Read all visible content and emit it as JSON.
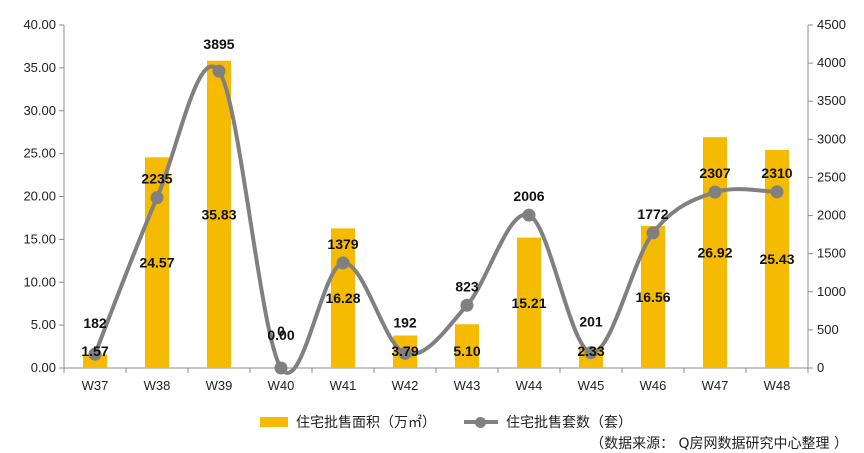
{
  "chart_data": {
    "type": "bar",
    "categories": [
      "W37",
      "W38",
      "W39",
      "W40",
      "W41",
      "W42",
      "W43",
      "W44",
      "W45",
      "W46",
      "W47",
      "W48"
    ],
    "series": [
      {
        "name": "住宅批售面积（万㎡）",
        "kind": "bar",
        "axis": "left",
        "color": "#F5BB00",
        "values": [
          1.57,
          24.57,
          35.83,
          0.0,
          16.28,
          3.79,
          5.1,
          15.21,
          2.33,
          16.56,
          26.92,
          25.43
        ],
        "labels": [
          "1.57",
          "24.57",
          "35.83",
          "0.00",
          "16.28",
          "3.79",
          "5.10",
          "15.21",
          "2.33",
          "16.56",
          "26.92",
          "25.43"
        ]
      },
      {
        "name": "住宅批售套数（套）",
        "kind": "line",
        "axis": "right",
        "color": "#808080",
        "values": [
          182,
          2235,
          3895,
          0,
          1379,
          192,
          823,
          2006,
          201,
          1772,
          2307,
          2310
        ],
        "labels": [
          "182",
          "2235",
          "3895",
          "0",
          "1379",
          "192",
          "823",
          "2006",
          "201",
          "1772",
          "2307",
          "2310"
        ]
      }
    ],
    "y_left": {
      "ylim": [
        0,
        40
      ],
      "ticks": [
        "0.00",
        "5.00",
        "10.00",
        "15.00",
        "20.00",
        "25.00",
        "30.00",
        "35.00",
        "40.00"
      ]
    },
    "y_right": {
      "ylim": [
        0,
        4500
      ],
      "ticks": [
        "0",
        "500",
        "1000",
        "1500",
        "2000",
        "2500",
        "3000",
        "3500",
        "4000",
        "4500"
      ]
    },
    "grid": false,
    "legend_position": "bottom"
  },
  "legend": {
    "bar_label": "住宅批售面积（万㎡）",
    "line_label": "住宅批售套数（套）"
  },
  "source_note": "（数据来源： Q房网数据研究中心整理 ）"
}
